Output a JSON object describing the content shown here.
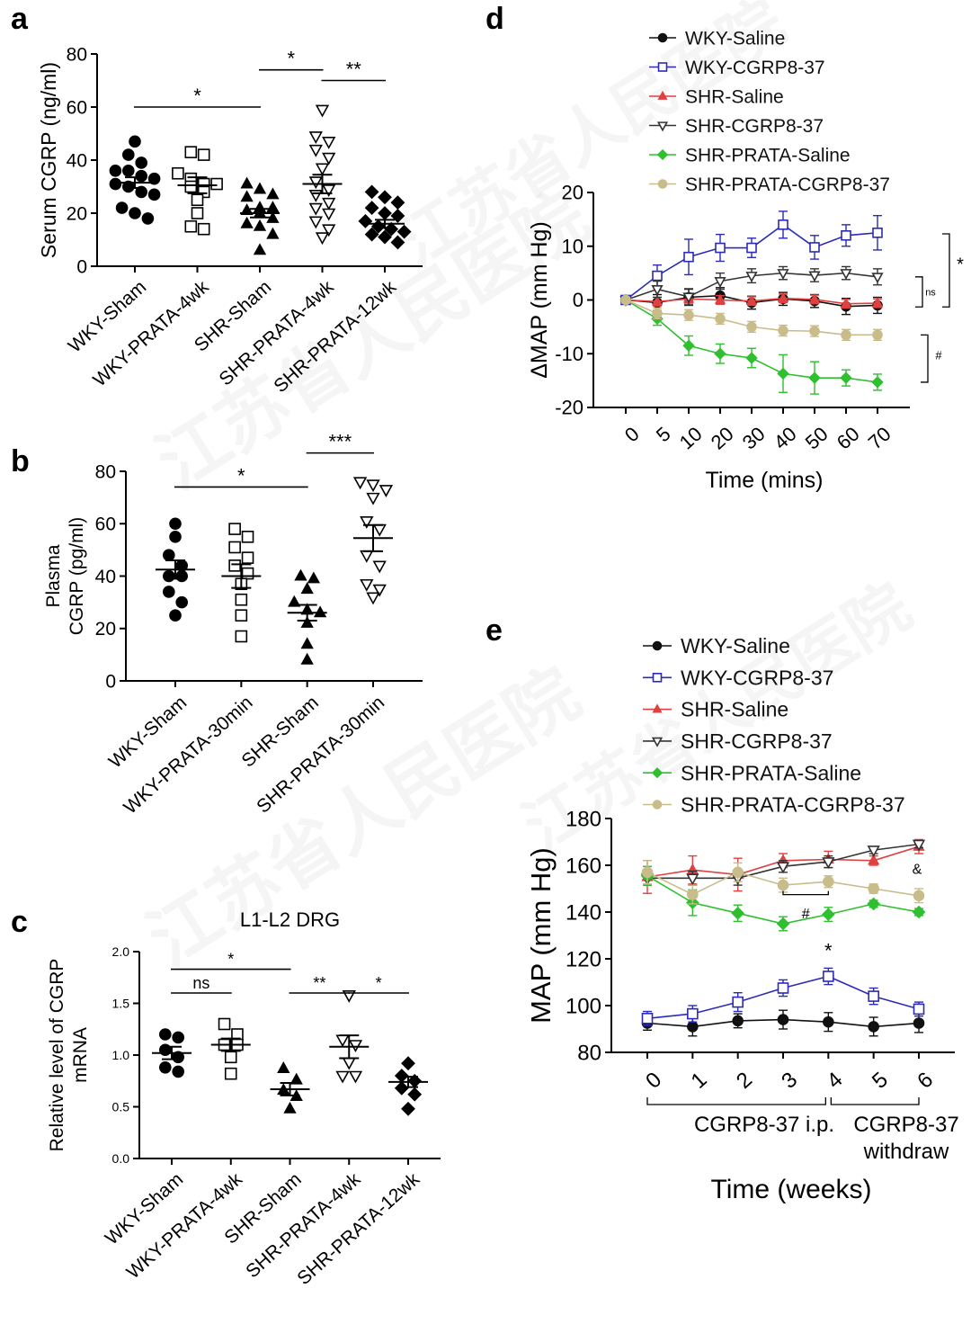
{
  "watermark": {
    "text": "江苏省人民医院"
  },
  "panels": [
    {
      "id": "a",
      "label": "a"
    },
    {
      "id": "b",
      "label": "b"
    },
    {
      "id": "c",
      "label": "c"
    },
    {
      "id": "d",
      "label": "d"
    },
    {
      "id": "e",
      "label": "e"
    }
  ],
  "chart_data": [
    {
      "id": "a",
      "type": "scatter",
      "title": "",
      "ylabel": "Serum CGRP (ng/ml)",
      "ylim": [
        0,
        80
      ],
      "yticks": [
        0,
        20,
        40,
        60,
        80
      ],
      "categories": [
        "WKY-Sham",
        "WKY-PRATA-4wk",
        "SHR-Sham",
        "SHR-PRATA-4wk",
        "SHR-PRATA-12wk"
      ],
      "markers": [
        "circle",
        "square",
        "triangle",
        "triangle-down",
        "diamond"
      ],
      "points": [
        [
          47,
          42,
          39,
          36,
          36,
          34,
          33,
          31,
          30,
          28,
          27,
          22,
          20,
          18
        ],
        [
          43,
          42,
          35,
          33,
          31,
          31,
          30,
          28,
          25,
          20,
          14,
          15
        ],
        [
          31,
          29,
          27,
          26,
          22,
          22,
          21,
          20,
          18,
          16,
          15,
          12,
          6
        ],
        [
          59,
          49,
          47,
          44,
          41,
          37,
          32,
          29,
          27,
          24,
          22,
          20,
          17,
          14,
          11
        ],
        [
          28,
          26,
          24,
          22,
          20,
          19,
          17,
          15,
          14,
          13,
          12,
          11,
          9
        ]
      ],
      "means": [
        31.5,
        30.5,
        20,
        31,
        16
      ],
      "sems": [
        2,
        3,
        1.6,
        3.5,
        1.5
      ],
      "significance": [
        {
          "from": 0,
          "to": 2,
          "text": "*",
          "y": 60
        },
        {
          "from": 2,
          "to": 3,
          "text": "*",
          "y": 74
        },
        {
          "from": 3,
          "to": 4,
          "text": "**",
          "y": 70
        }
      ]
    },
    {
      "id": "b",
      "type": "scatter",
      "title": "",
      "ylabel_lines": [
        "Plasma",
        "CGRP (pg/ml)"
      ],
      "ylim": [
        0,
        80
      ],
      "yticks": [
        0,
        20,
        40,
        60,
        80
      ],
      "categories": [
        "WKY-Sham",
        "WKY-PRATA-30min",
        "SHR-Sham",
        "SHR-PRATA-30min"
      ],
      "markers": [
        "circle",
        "square",
        "triangle",
        "triangle-down"
      ],
      "points": [
        [
          60,
          55,
          48,
          44,
          40,
          40,
          34,
          30,
          25
        ],
        [
          58,
          55,
          51,
          47,
          44,
          41,
          37,
          31,
          25,
          17
        ],
        [
          40,
          39,
          35,
          30,
          27,
          26,
          22,
          14,
          8
        ],
        [
          76,
          75,
          73,
          70,
          61,
          58,
          48,
          44,
          37,
          35,
          32
        ]
      ],
      "means": [
        42.5,
        40,
        26,
        54.5
      ],
      "sems": [
        3.5,
        4.5,
        3,
        5
      ],
      "significance": [
        {
          "from": 0,
          "to": 2,
          "text": "*",
          "y": 74
        },
        {
          "from": 2,
          "to": 3,
          "text": "***",
          "y": 87
        }
      ]
    },
    {
      "id": "c",
      "type": "scatter",
      "title": "L1-L2 DRG",
      "ylabel_lines": [
        "Relative level of CGRP",
        "mRNA"
      ],
      "ylim": [
        0,
        2
      ],
      "yticks": [
        "0.0",
        "0.5",
        "1.0",
        "1.5",
        "2.0"
      ],
      "categories": [
        "WKY-Sham",
        "WKY-PRATA-4wk",
        "SHR-Sham",
        "SHR-PRATA-4wk",
        "SHR-PRATA-12wk"
      ],
      "markers": [
        "circle",
        "square",
        "triangle",
        "triangle-down",
        "diamond"
      ],
      "points": [
        [
          1.2,
          1.17,
          1.05,
          0.98,
          0.88,
          0.84
        ],
        [
          1.3,
          1.2,
          1.1,
          1.1,
          0.98,
          0.82
        ],
        [
          0.87,
          0.76,
          0.66,
          0.6,
          0.48
        ],
        [
          1.58,
          1.15,
          1.1,
          0.93,
          0.8,
          0.8
        ],
        [
          0.92,
          0.8,
          0.75,
          0.68,
          0.62,
          0.48
        ]
      ],
      "means": [
        1.02,
        1.1,
        0.67,
        1.08,
        0.74
      ],
      "sems": [
        0.06,
        0.06,
        0.06,
        0.11,
        0.05
      ],
      "significance": [
        {
          "from": 0,
          "to": 1,
          "text": "ns",
          "y": 1.6
        },
        {
          "from": 0,
          "to": 2,
          "text": "*",
          "y": 1.83
        },
        {
          "from": 2,
          "to": 3,
          "text": "**",
          "y": 1.6
        },
        {
          "from": 3,
          "to": 4,
          "text": "*",
          "y": 1.6
        }
      ]
    },
    {
      "id": "d",
      "type": "line",
      "title": "",
      "xlabel": "Time (mins)",
      "ylabel": "ΔMAP (mm Hg)",
      "ylim": [
        -20,
        20
      ],
      "yticks": [
        -20,
        -10,
        0,
        10,
        20
      ],
      "x": [
        0,
        5,
        10,
        20,
        30,
        40,
        50,
        60,
        70
      ],
      "series": [
        {
          "name": "WKY-Saline",
          "color": "#111111",
          "marker": "circle",
          "values": [
            0,
            -0.5,
            0.5,
            0.8,
            -0.5,
            0.2,
            -0.2,
            -1.2,
            -1.0
          ],
          "err": [
            0.5,
            1.5,
            1.5,
            1.5,
            1.2,
            1.2,
            1.2,
            1.5,
            1.5
          ]
        },
        {
          "name": "WKY-CGRP8-37",
          "color": "#2b2bb8",
          "marker": "square-open",
          "values": [
            0,
            4.5,
            8,
            9.7,
            9.7,
            14,
            9.8,
            12,
            12.5
          ],
          "err": [
            0.5,
            2,
            3.3,
            2.5,
            1.8,
            2.5,
            2.2,
            2,
            3.2
          ]
        },
        {
          "name": "SHR-Saline",
          "color": "#e04040",
          "marker": "triangle",
          "values": [
            0,
            -0.3,
            0.2,
            0,
            -0.2,
            0.3,
            0.1,
            -0.7,
            -0.6
          ],
          "err": [
            0.5,
            0.8,
            0.8,
            0.8,
            0.8,
            0.8,
            0.8,
            0.8,
            0.8
          ]
        },
        {
          "name": "SHR-CGRP8-37",
          "color": "#333333",
          "marker": "triangle-down-open",
          "values": [
            0,
            2,
            0.6,
            3.5,
            4.5,
            5,
            4.6,
            5,
            4.3
          ],
          "err": [
            0.5,
            1.5,
            1.5,
            1.5,
            1.3,
            1.2,
            1.2,
            1.2,
            1.5
          ]
        },
        {
          "name": "SHR-PRATA-Saline",
          "color": "#2fbf2f",
          "marker": "diamond",
          "values": [
            0,
            -3.5,
            -8.5,
            -10,
            -10.8,
            -13.7,
            -14.5,
            -14.5,
            -15.3
          ],
          "err": [
            0.5,
            1.2,
            1.8,
            1.8,
            1.8,
            3.5,
            3,
            1.5,
            1.5
          ]
        },
        {
          "name": "SHR-PRATA-CGRP8-37",
          "color": "#c8bd8a",
          "marker": "circle",
          "values": [
            0,
            -2.5,
            -2.8,
            -3.5,
            -5,
            -5.7,
            -5.8,
            -6.5,
            -6.5
          ],
          "err": [
            0.5,
            1,
            1,
            1,
            1,
            1,
            1,
            1,
            1
          ]
        }
      ],
      "annotations": [
        {
          "text": "*",
          "between": "WKY-CGRP8-37 vs SHR",
          "kind": "bracket"
        },
        {
          "text": "ns",
          "kind": "bracket"
        },
        {
          "text": "#",
          "kind": "bracket"
        }
      ]
    },
    {
      "id": "e",
      "type": "line",
      "title": "",
      "xlabel": "Time (weeks)",
      "ylabel": "MAP (mm Hg)",
      "ylim": [
        80,
        180
      ],
      "yticks": [
        80,
        100,
        120,
        140,
        160,
        180
      ],
      "x": [
        0,
        1,
        2,
        3,
        4,
        5,
        6
      ],
      "series": [
        {
          "name": "WKY-Saline",
          "color": "#111111",
          "marker": "circle",
          "values": [
            92.5,
            91,
            93.5,
            94,
            93,
            91,
            92.5
          ],
          "err": [
            3,
            4,
            3,
            4,
            4,
            4,
            4
          ]
        },
        {
          "name": "WKY-CGRP8-37",
          "color": "#2b2bb8",
          "marker": "square-open",
          "values": [
            94.5,
            96.5,
            101.5,
            107.5,
            112.5,
            104,
            98.5
          ],
          "err": [
            3,
            3.5,
            4,
            3.5,
            3.5,
            3.5,
            3
          ]
        },
        {
          "name": "SHR-Saline",
          "color": "#e04040",
          "marker": "triangle",
          "values": [
            155,
            158,
            156,
            162,
            162.5,
            162,
            168
          ],
          "err": [
            7,
            6,
            7,
            3,
            3.5,
            2,
            3
          ]
        },
        {
          "name": "SHR-CGRP8-37",
          "color": "#333333",
          "marker": "triangle-down-open",
          "values": [
            154.5,
            154.5,
            154.5,
            159.5,
            161.5,
            166.5,
            169
          ],
          "err": [
            3,
            3,
            3,
            2.5,
            2.5,
            1.5,
            1.5
          ]
        },
        {
          "name": "SHR-PRATA-Saline",
          "color": "#2fbf2f",
          "marker": "diamond",
          "values": [
            155.5,
            144,
            139.5,
            135,
            139,
            143.5,
            140
          ],
          "err": [
            4,
            5.5,
            3.5,
            3,
            3,
            1.5,
            1.5
          ]
        },
        {
          "name": "SHR-PRATA-CGRP8-37",
          "color": "#c8bd8a",
          "marker": "circle",
          "values": [
            157,
            147.5,
            157,
            151.5,
            153,
            150,
            147
          ],
          "err": [
            5,
            4,
            4,
            3,
            2.5,
            2,
            3
          ]
        }
      ],
      "annotations": [
        {
          "text": "*",
          "x": 4
        },
        {
          "text": "#",
          "kind": "bracket",
          "x_from": 3,
          "x_to": 4
        },
        {
          "text": "&",
          "x": 6
        }
      ],
      "phase_labels": [
        {
          "text": "CGRP8-37 i.p.",
          "x_from": 0,
          "x_to": 4
        },
        {
          "text_lines": [
            "CGRP8-37",
            "withdraw"
          ],
          "x_from": 4,
          "x_to": 6
        }
      ]
    }
  ]
}
